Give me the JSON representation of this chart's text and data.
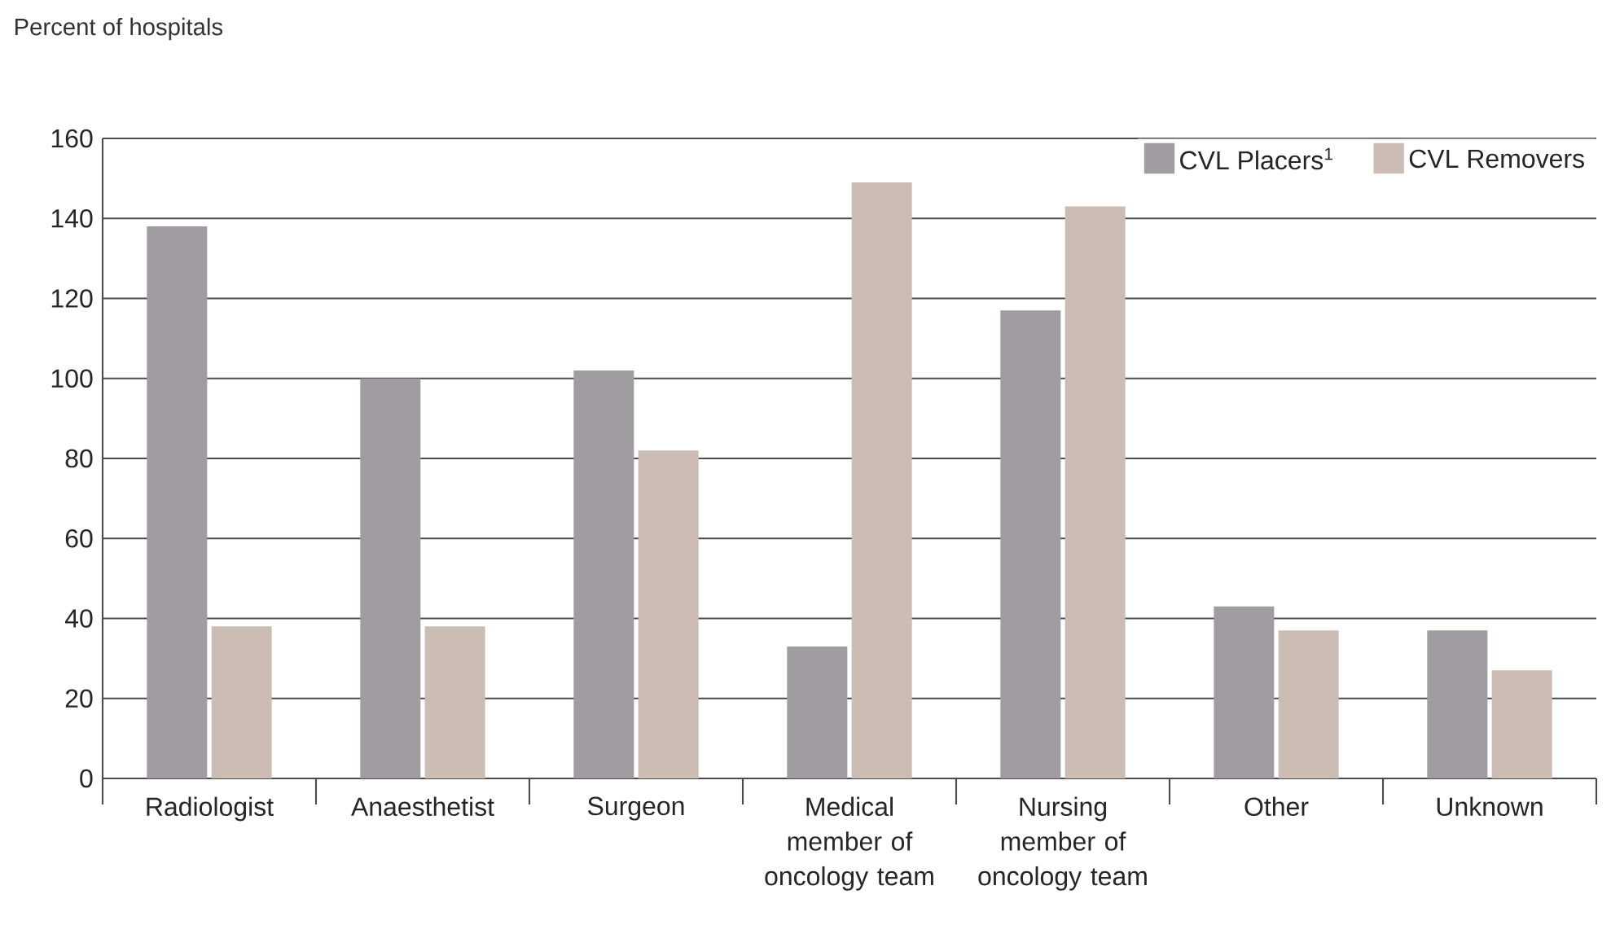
{
  "chart_data": {
    "type": "bar",
    "ylabel": "Percent of hospitals",
    "categories": [
      "Radiologist",
      "Anaesthetist",
      "Surgeon",
      "Medical member of oncology team",
      "Nursing member of oncology team",
      "Other",
      "Unknown"
    ],
    "series": [
      {
        "name": "CVL Placers$^{1}$",
        "color": "#a09ca1",
        "values": [
          138,
          100,
          102,
          33,
          117,
          43,
          37
        ]
      },
      {
        "name": "CVL Removers",
        "color": "#cbbdb3",
        "values": [
          38,
          38,
          82,
          149,
          143,
          37,
          27
        ]
      }
    ],
    "ylim": [
      0,
      160
    ],
    "yticks": [
      0,
      20,
      40,
      60,
      80,
      100,
      120,
      140,
      160
    ],
    "grid": "y",
    "legend": "top right"
  }
}
